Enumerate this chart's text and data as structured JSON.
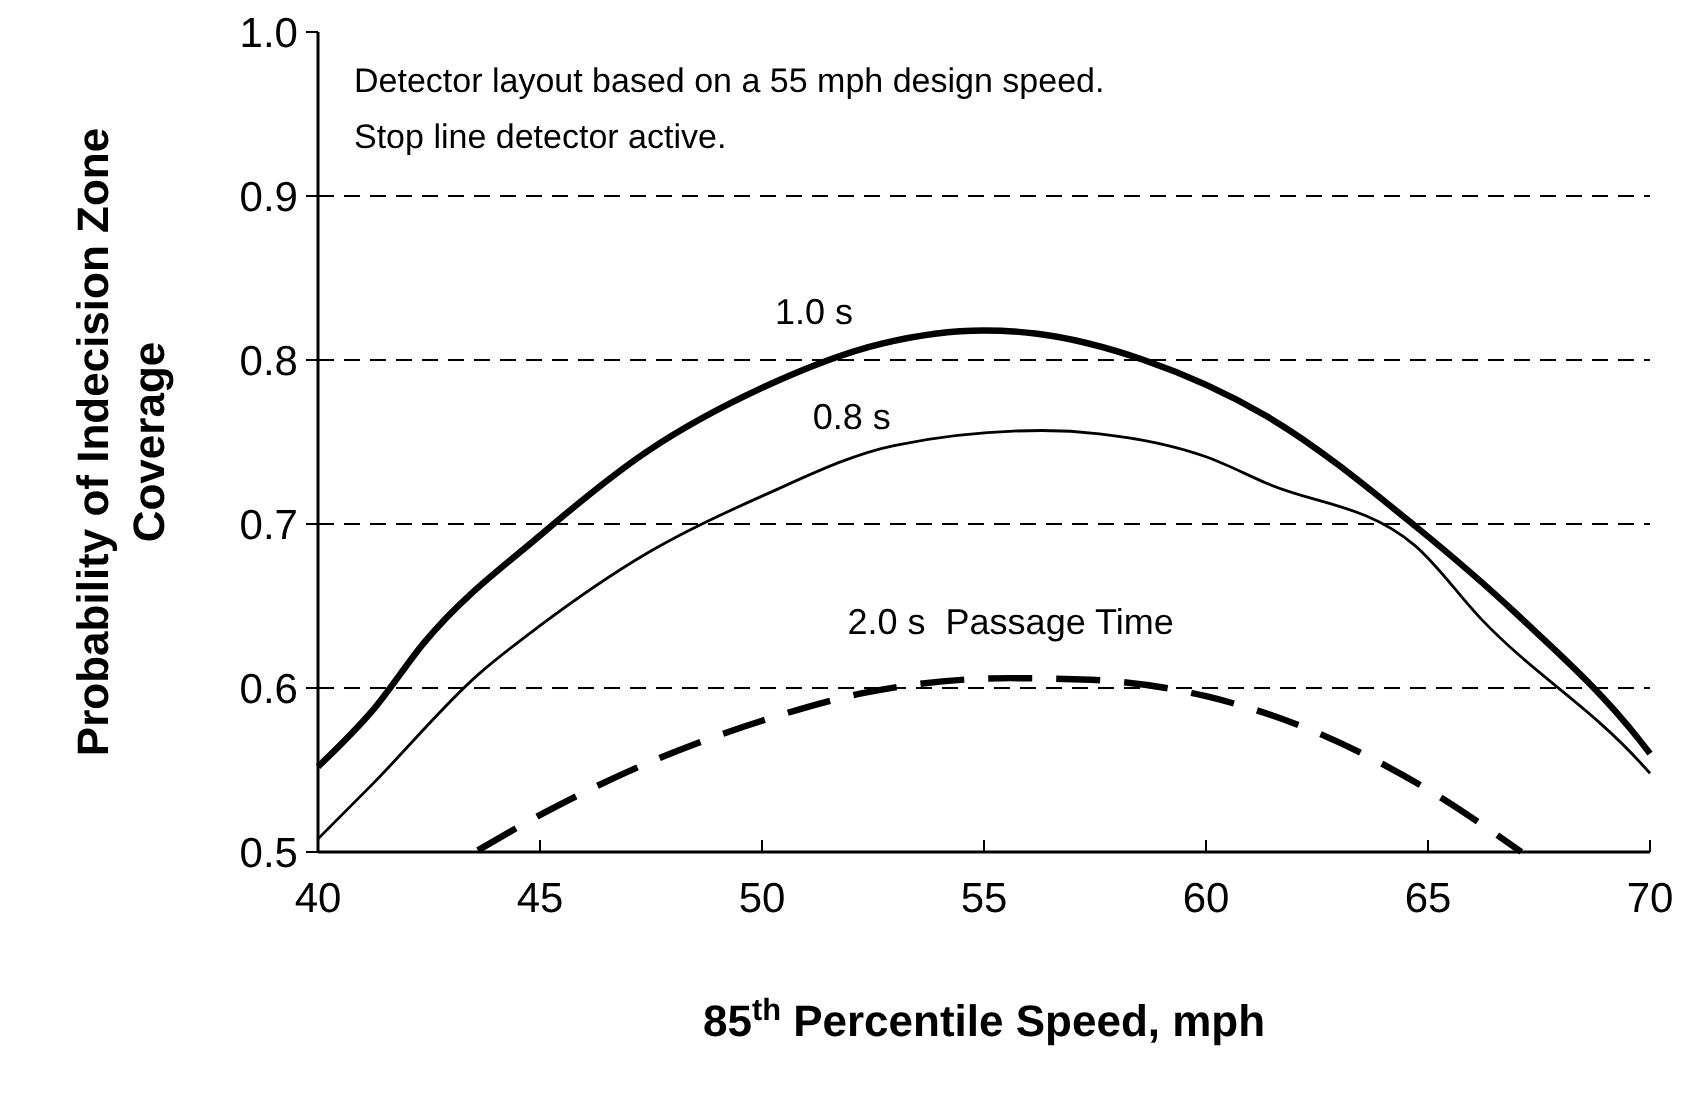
{
  "chart_data": {
    "type": "line",
    "xlabel": "85$^{th}$ Percentile Speed, mph",
    "ylabel": "Probability of Indecision Zone Coverage",
    "xlim": [
      40,
      70
    ],
    "xticks": [
      40,
      45,
      50,
      55,
      60,
      65,
      70
    ],
    "ylim": [
      0.5,
      1.0
    ],
    "yticks": [
      0.5,
      0.6,
      0.7,
      0.8,
      0.9,
      {
        "value": 1.0,
        "label": "1.0"
      }
    ],
    "grid": "y",
    "marker": "none",
    "annotations": [
      "Detector layout based on a 55 mph design speed.",
      "Stop line detector active."
    ],
    "series": [
      {
        "name": "1.0 s",
        "color": "#000000",
        "line_style": "solid",
        "x": [
          40,
          41.25,
          42.4,
          45,
          47.4,
          50,
          52.7,
          55,
          56.2,
          58.6,
          61.35,
          64.7,
          67,
          69.8,
          70
        ],
        "values": [
          0.552,
          0.587,
          0.628,
          0.693,
          0.744,
          0.783,
          0.81,
          0.818,
          0.816,
          0.8,
          0.766,
          0.699,
          0.645,
          0.567,
          0.56
        ]
      },
      {
        "name": "0.8 s",
        "color": "#000000",
        "line_style": "solid",
        "x": [
          40,
          41.25,
          43.6,
          45,
          47.4,
          50,
          53,
          56.3,
          57.6,
          60,
          61.35,
          64.7,
          66.2,
          69.8,
          70
        ],
        "values": [
          0.508,
          0.542,
          0.608,
          0.638,
          0.682,
          0.717,
          0.748,
          0.757,
          0.755,
          0.741,
          0.725,
          0.687,
          0.642,
          0.554,
          0.548
        ]
      },
      {
        "name": "2.0 s  Passage Time",
        "color": "#000000",
        "line_style": "dashed",
        "x": [
          43.6,
          45.1,
          47.4,
          50,
          52.3,
          55.6,
          57.4,
          60,
          62.3,
          65,
          67.1
        ],
        "values": [
          0.501,
          0.524,
          0.554,
          0.58,
          0.597,
          0.606,
          0.605,
          0.595,
          0.575,
          0.538,
          0.5
        ]
      }
    ]
  }
}
